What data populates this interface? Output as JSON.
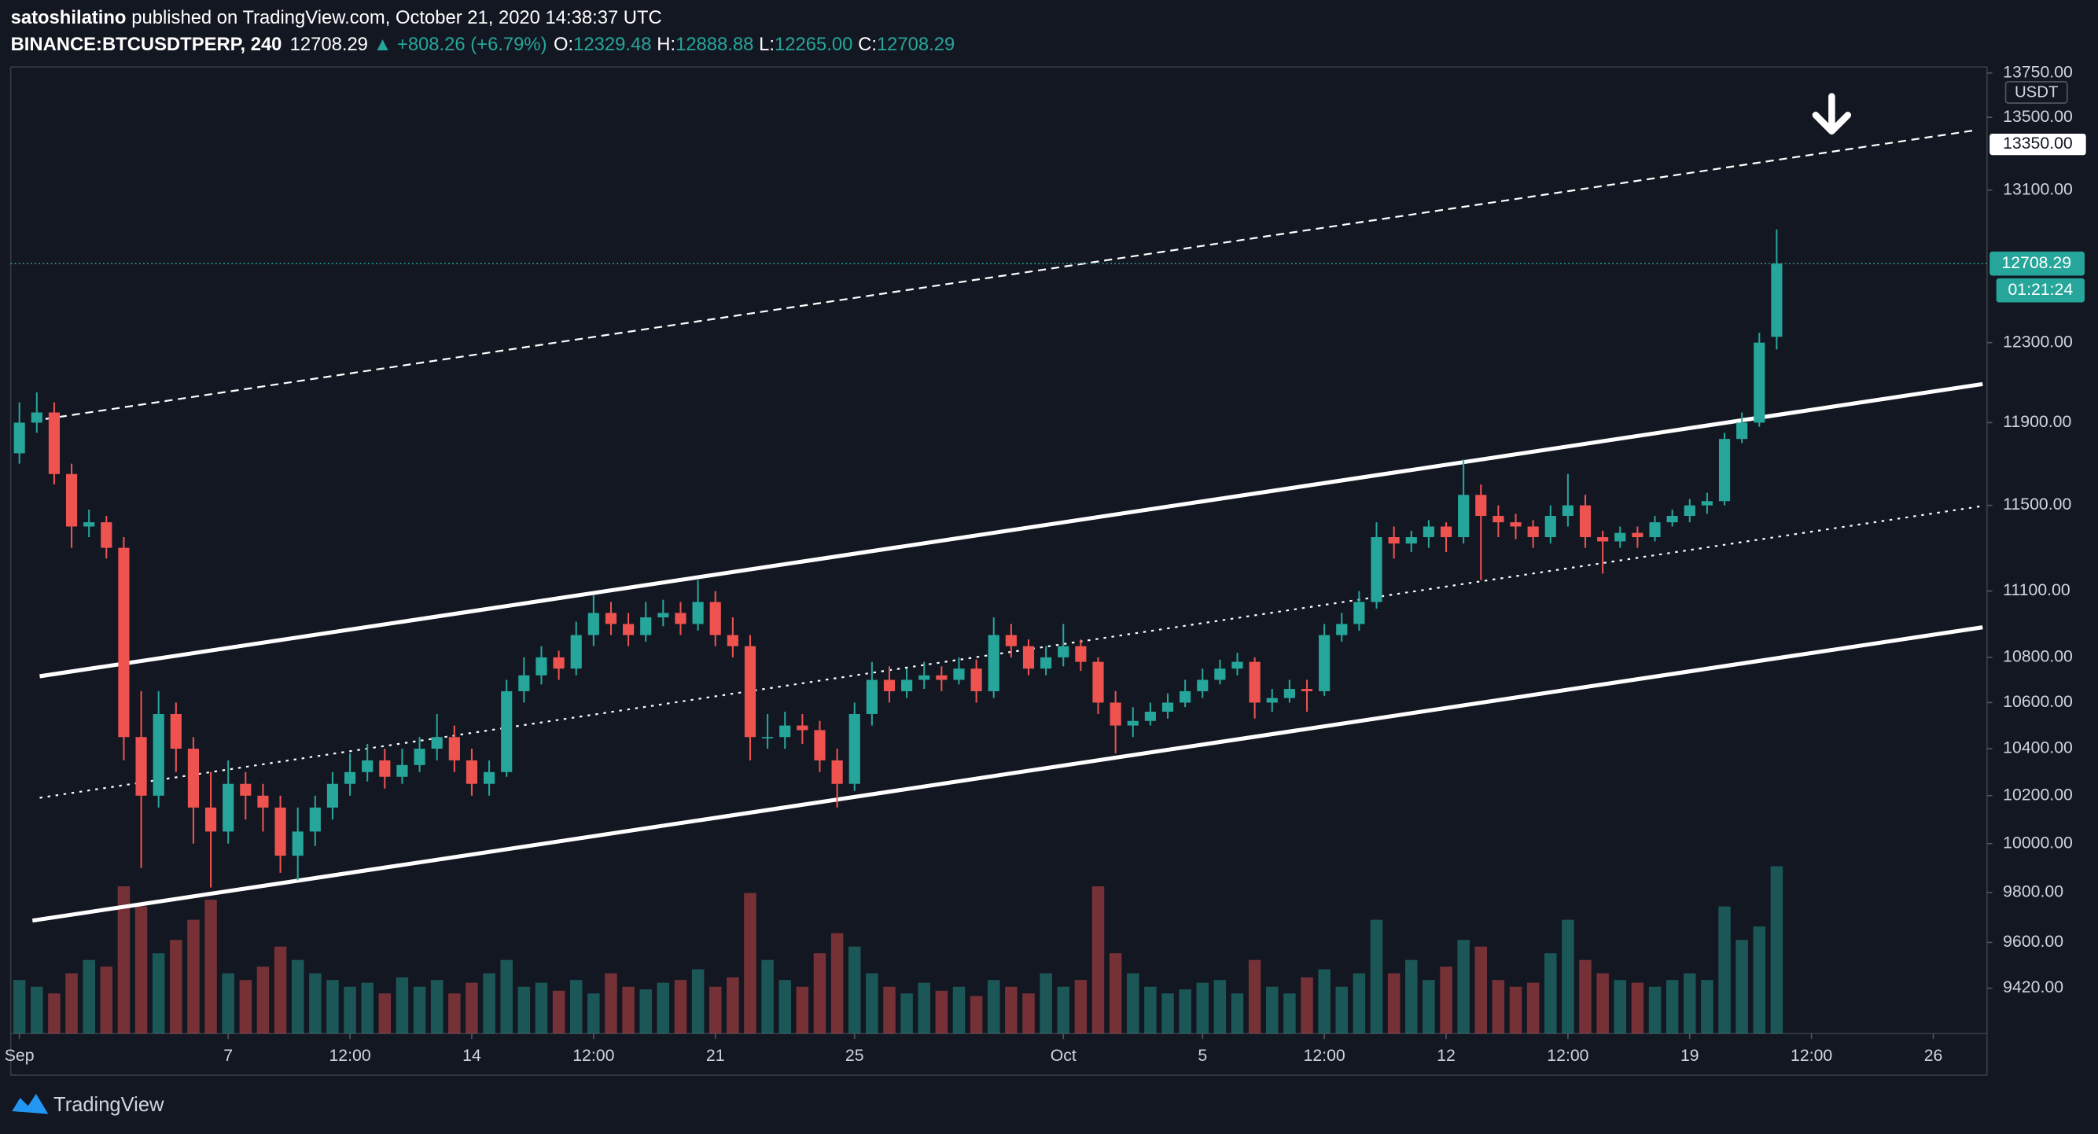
{
  "header": {
    "author": "satoshilatino",
    "published": "published on TradingView.com, October 21, 2020 14:38:37 UTC",
    "symbol": "BINANCE:BTCUSDTPERP, 240",
    "price": "12708.29",
    "change": "▲ +808.26 (+6.79%)",
    "ohlc": [
      {
        "key": "O:",
        "value": "12329.48"
      },
      {
        "key": "H:",
        "value": "12888.88"
      },
      {
        "key": "L:",
        "value": "12265.00"
      },
      {
        "key": "C:",
        "value": "12708.29"
      }
    ]
  },
  "footer": {
    "brand": "TradingView"
  },
  "chart_data": {
    "type": "candlestick",
    "log_scale": true,
    "grid": false,
    "up_color": "#26a69a",
    "down_color": "#ef5350",
    "currency": "USDT",
    "x": [
      "Sep 1 00:00",
      "Sep 1 12:00",
      "Sep 2 00:00",
      "Sep 2 12:00",
      "Sep 3 00:00",
      "Sep 3 12:00",
      "Sep 4 00:00",
      "Sep 4 12:00",
      "Sep 5 00:00",
      "Sep 5 12:00",
      "Sep 6 00:00",
      "Sep 6 12:00",
      "Sep 7 00:00",
      "Sep 7 12:00",
      "Sep 8 00:00",
      "Sep 8 12:00",
      "Sep 9 00:00",
      "Sep 9 12:00",
      "Sep 10 00:00",
      "Sep 10 12:00",
      "Sep 11 00:00",
      "Sep 11 12:00",
      "Sep 12 00:00",
      "Sep 12 12:00",
      "Sep 13 00:00",
      "Sep 13 12:00",
      "Sep 14 00:00",
      "Sep 14 12:00",
      "Sep 15 00:00",
      "Sep 15 12:00",
      "Sep 16 00:00",
      "Sep 16 12:00",
      "Sep 17 00:00",
      "Sep 17 12:00",
      "Sep 18 00:00",
      "Sep 18 12:00",
      "Sep 19 00:00",
      "Sep 19 12:00",
      "Sep 20 00:00",
      "Sep 20 12:00",
      "Sep 21 00:00",
      "Sep 21 12:00",
      "Sep 22 00:00",
      "Sep 22 12:00",
      "Sep 23 00:00",
      "Sep 23 12:00",
      "Sep 24 00:00",
      "Sep 24 12:00",
      "Sep 25 00:00",
      "Sep 25 12:00",
      "Sep 26 00:00",
      "Sep 26 12:00",
      "Sep 27 00:00",
      "Sep 27 12:00",
      "Sep 28 00:00",
      "Sep 28 12:00",
      "Sep 29 00:00",
      "Sep 29 12:00",
      "Sep 30 00:00",
      "Sep 30 12:00",
      "Oct 1 00:00",
      "Oct 1 12:00",
      "Oct 2 00:00",
      "Oct 2 12:00",
      "Oct 3 00:00",
      "Oct 3 12:00",
      "Oct 4 00:00",
      "Oct 4 12:00",
      "Oct 5 00:00",
      "Oct 5 12:00",
      "Oct 6 00:00",
      "Oct 6 12:00",
      "Oct 7 00:00",
      "Oct 7 12:00",
      "Oct 8 00:00",
      "Oct 8 12:00",
      "Oct 9 00:00",
      "Oct 9 12:00",
      "Oct 10 00:00",
      "Oct 10 12:00",
      "Oct 11 00:00",
      "Oct 11 12:00",
      "Oct 12 00:00",
      "Oct 12 12:00",
      "Oct 13 00:00",
      "Oct 13 12:00",
      "Oct 14 00:00",
      "Oct 14 12:00",
      "Oct 15 00:00",
      "Oct 15 12:00",
      "Oct 16 00:00",
      "Oct 16 12:00",
      "Oct 17 00:00",
      "Oct 17 12:00",
      "Oct 18 00:00",
      "Oct 18 12:00",
      "Oct 19 00:00",
      "Oct 19 12:00",
      "Oct 20 00:00",
      "Oct 20 12:00",
      "Oct 21 00:00",
      "Oct 21 12:00"
    ],
    "open": [
      11750,
      11900,
      11950,
      11650,
      11400,
      11420,
      11300,
      10450,
      10200,
      10550,
      10400,
      10150,
      10050,
      10250,
      10200,
      10150,
      9950,
      10050,
      10150,
      10250,
      10300,
      10350,
      10280,
      10330,
      10400,
      10450,
      10350,
      10250,
      10300,
      10650,
      10720,
      10800,
      10750,
      10900,
      11000,
      10950,
      10900,
      10980,
      11000,
      10950,
      11050,
      10900,
      10850,
      10450,
      10450,
      10500,
      10480,
      10350,
      10250,
      10550,
      10700,
      10650,
      10700,
      10720,
      10700,
      10750,
      10650,
      10900,
      10850,
      10750,
      10800,
      10850,
      10780,
      10600,
      10500,
      10520,
      10560,
      10600,
      10650,
      10700,
      10750,
      10780,
      10600,
      10620,
      10660,
      10650,
      10900,
      10950,
      11050,
      11350,
      11320,
      11350,
      11400,
      11350,
      11550,
      11450,
      11420,
      11400,
      11350,
      11450,
      11500,
      11350,
      11330,
      11370,
      11350,
      11420,
      11450,
      11500,
      11520,
      11820,
      11900,
      12329.48
    ],
    "high": [
      12000,
      12050,
      12000,
      11700,
      11480,
      11450,
      11350,
      10650,
      10650,
      10600,
      10450,
      10300,
      10350,
      10300,
      10250,
      10200,
      10150,
      10200,
      10300,
      10380,
      10420,
      10400,
      10400,
      10450,
      10550,
      10500,
      10400,
      10350,
      10700,
      10800,
      10850,
      10830,
      10960,
      11080,
      11050,
      11000,
      11050,
      11060,
      11050,
      11150,
      11100,
      10980,
      10900,
      10550,
      10560,
      10550,
      10520,
      10400,
      10600,
      10780,
      10760,
      10750,
      10780,
      10760,
      10800,
      10790,
      10980,
      10950,
      10880,
      10850,
      10950,
      10880,
      10800,
      10650,
      10580,
      10600,
      10640,
      10700,
      10750,
      10790,
      10820,
      10800,
      10660,
      10700,
      10700,
      10950,
      11000,
      11100,
      11420,
      11400,
      11380,
      11430,
      11420,
      11720,
      11600,
      11500,
      11460,
      11430,
      11500,
      11650,
      11550,
      11380,
      11400,
      11400,
      11450,
      11480,
      11530,
      11560,
      11850,
      11950,
      12350,
      12888.88
    ],
    "low": [
      11700,
      11850,
      11600,
      11300,
      11350,
      11250,
      10350,
      9900,
      10150,
      10300,
      10000,
      9820,
      10000,
      10100,
      10050,
      9880,
      9850,
      9990,
      10100,
      10200,
      10260,
      10230,
      10250,
      10300,
      10350,
      10300,
      10200,
      10200,
      10280,
      10600,
      10680,
      10700,
      10720,
      10850,
      10900,
      10850,
      10870,
      10940,
      10900,
      10920,
      10850,
      10800,
      10350,
      10400,
      10400,
      10420,
      10300,
      10150,
      10220,
      10500,
      10600,
      10620,
      10660,
      10650,
      10680,
      10600,
      10620,
      10800,
      10720,
      10720,
      10760,
      10740,
      10550,
      10380,
      10450,
      10500,
      10530,
      10580,
      10620,
      10680,
      10720,
      10530,
      10560,
      10600,
      10560,
      10630,
      10870,
      10920,
      11020,
      11250,
      11280,
      11300,
      11280,
      11320,
      11150,
      11350,
      11340,
      11300,
      11320,
      11400,
      11300,
      11180,
      11300,
      11300,
      11330,
      11400,
      11420,
      11460,
      11500,
      11800,
      11880,
      12265
    ],
    "close": [
      11900,
      11950,
      11650,
      11400,
      11420,
      11300,
      10450,
      10200,
      10550,
      10400,
      10150,
      10050,
      10250,
      10200,
      10150,
      9950,
      10050,
      10150,
      10250,
      10300,
      10350,
      10280,
      10330,
      10400,
      10450,
      10350,
      10250,
      10300,
      10650,
      10720,
      10800,
      10750,
      10900,
      11000,
      10950,
      10900,
      10980,
      11000,
      10950,
      11050,
      10900,
      10850,
      10450,
      10450,
      10500,
      10480,
      10350,
      10250,
      10550,
      10700,
      10650,
      10700,
      10720,
      10700,
      10750,
      10650,
      10900,
      10850,
      10750,
      10800,
      10850,
      10780,
      10600,
      10500,
      10520,
      10560,
      10600,
      10650,
      10700,
      10750,
      10780,
      10600,
      10620,
      10660,
      10650,
      10900,
      10950,
      11050,
      11350,
      11320,
      11350,
      11400,
      11350,
      11550,
      11450,
      11420,
      11400,
      11350,
      11450,
      11500,
      11350,
      11330,
      11370,
      11350,
      11420,
      11450,
      11500,
      11520,
      11820,
      11900,
      12300,
      12708.29
    ],
    "volume": [
      40,
      35,
      30,
      45,
      55,
      50,
      110,
      95,
      60,
      70,
      85,
      100,
      45,
      40,
      50,
      65,
      55,
      45,
      40,
      35,
      38,
      30,
      42,
      35,
      40,
      30,
      38,
      45,
      55,
      35,
      38,
      32,
      40,
      30,
      45,
      35,
      33,
      38,
      40,
      48,
      35,
      42,
      105,
      55,
      40,
      35,
      60,
      75,
      65,
      45,
      35,
      30,
      38,
      32,
      35,
      28,
      40,
      35,
      30,
      45,
      35,
      40,
      110,
      60,
      45,
      35,
      30,
      33,
      38,
      40,
      30,
      55,
      35,
      30,
      42,
      48,
      35,
      45,
      85,
      45,
      55,
      40,
      50,
      70,
      65,
      40,
      35,
      38,
      60,
      85,
      55,
      45,
      40,
      38,
      35,
      40,
      45,
      40,
      95,
      70,
      80,
      125
    ],
    "xlim": [
      "Aug 31 18:00",
      "Oct 27 13:00"
    ],
    "xticks": [
      {
        "value": "Sep 1 00:00",
        "label": "Sep"
      },
      {
        "value": "Sep 7 00:00",
        "label": "7"
      },
      {
        "value": "Sep 10 12:00",
        "label": "12:00"
      },
      {
        "value": "Sep 14 00:00",
        "label": "14"
      },
      {
        "value": "Sep 17 12:00",
        "label": "12:00"
      },
      {
        "value": "Sep 21 00:00",
        "label": "21"
      },
      {
        "value": "Sep 25 00:00",
        "label": "25"
      },
      {
        "value": "Oct 1 00:00",
        "label": "Oct"
      },
      {
        "value": "Oct 5 00:00",
        "label": "5"
      },
      {
        "value": "Oct 8 12:00",
        "label": "12:00"
      },
      {
        "value": "Oct 12 00:00",
        "label": "12"
      },
      {
        "value": "Oct 15 12:00",
        "label": "12:00"
      },
      {
        "value": "Oct 19 00:00",
        "label": "19"
      },
      {
        "value": "Oct 22 12:00",
        "label": "12:00"
      },
      {
        "value": "Oct 26 00:00",
        "label": "26"
      }
    ],
    "ylim": [
      9245,
      13784
    ],
    "yticks": [
      {
        "value": 13750,
        "label": "13750.00"
      },
      {
        "value": 13500,
        "label": "13500.00"
      },
      {
        "value": 13100,
        "label": "13100.00"
      },
      {
        "value": 12300,
        "label": "12300.00"
      },
      {
        "value": 11900,
        "label": "11900.00"
      },
      {
        "value": 11500,
        "label": "11500.00"
      },
      {
        "value": 11100,
        "label": "11100.00"
      },
      {
        "value": 10800,
        "label": "10800.00"
      },
      {
        "value": 10600,
        "label": "10600.00"
      },
      {
        "value": 10400,
        "label": "10400.00"
      },
      {
        "value": 10200,
        "label": "10200.00"
      },
      {
        "value": 10000,
        "label": "10000.00"
      },
      {
        "value": 9800,
        "label": "9800.00"
      },
      {
        "value": 9600,
        "label": "9600.00"
      },
      {
        "value": 9420,
        "label": "9420.00"
      }
    ],
    "current_price": {
      "value": 12708.29,
      "label": "12708.29"
    },
    "countdown": "01:21:24",
    "marked_level": {
      "value": 13350,
      "label": "13350.00"
    },
    "trendlines": [
      {
        "x": [
          "Sep 1 14:00",
          "Oct 27 10:00"
        ],
        "y": [
          10716,
          12091
        ],
        "style": "solid"
      },
      {
        "x": [
          "Sep 1 09:00",
          "Oct 27 10:00"
        ],
        "y": [
          9687,
          10935
        ],
        "style": "solid"
      },
      {
        "x": [
          "Sep 1 14:00",
          "Oct 27 10:00"
        ],
        "y": [
          10191,
          11497
        ],
        "style": "dotted"
      },
      {
        "x": [
          "Sep 1 18:00",
          "Oct 27 06:30"
        ],
        "y": [
          11918,
          13430
        ],
        "style": "dashed"
      }
    ]
  }
}
